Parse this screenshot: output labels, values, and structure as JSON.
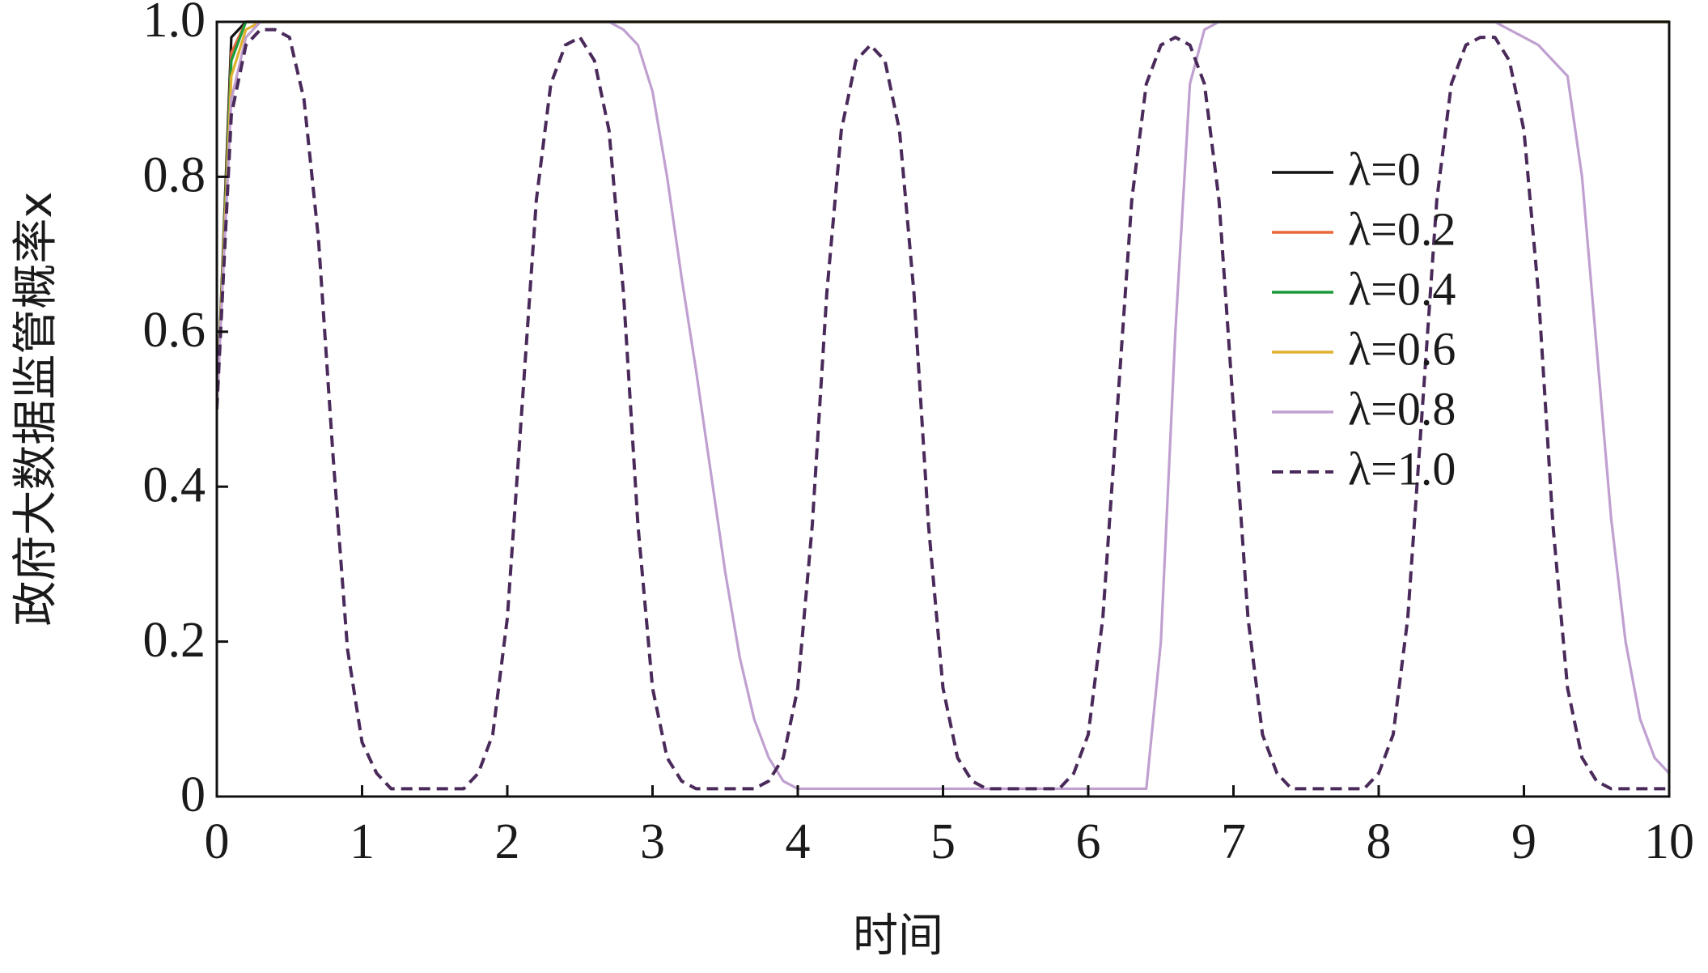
{
  "chart_data": {
    "type": "line",
    "xlabel": "时间",
    "ylabel": "政府大数据监管概率x",
    "xlim": [
      0,
      10
    ],
    "ylim": [
      0,
      1
    ],
    "xticks": [
      0,
      1,
      2,
      3,
      4,
      5,
      6,
      7,
      8,
      9,
      10
    ],
    "yticks": [
      0,
      0.2,
      0.4,
      0.6,
      0.8,
      {
        "value": 1,
        "label": "1.0"
      }
    ],
    "legend": "upper right",
    "x": [
      0,
      0.1,
      0.2,
      0.3,
      0.4,
      0.5,
      0.6,
      0.7,
      0.8,
      0.9,
      1,
      1.1,
      1.2,
      1.3,
      1.4,
      1.5,
      1.6,
      1.7,
      1.8,
      1.9,
      2,
      2.1,
      2.2,
      2.3,
      2.4,
      2.5,
      2.6,
      2.7,
      2.8,
      2.9,
      3,
      3.1,
      3.2,
      3.3,
      3.4,
      3.5,
      3.6,
      3.7,
      3.8,
      3.9,
      4,
      4.1,
      4.2,
      4.3,
      4.4,
      4.5,
      4.6,
      4.7,
      4.8,
      4.9,
      5,
      5.1,
      5.2,
      5.3,
      5.4,
      5.5,
      5.6,
      5.7,
      5.8,
      5.9,
      6,
      6.1,
      6.2,
      6.3,
      6.4,
      6.5,
      6.6,
      6.7,
      6.8,
      6.9,
      7,
      7.1,
      7.2,
      7.3,
      7.4,
      7.5,
      7.6,
      7.7,
      7.8,
      7.9,
      8,
      8.1,
      8.2,
      8.3,
      8.4,
      8.5,
      8.6,
      8.7,
      8.8,
      8.9,
      9,
      9.1,
      9.2,
      9.3,
      9.4,
      9.5,
      9.6,
      9.7,
      9.8,
      9.9,
      10
    ],
    "series": [
      {
        "name": "λ=0",
        "color": "#111111",
        "dash": false,
        "values": [
          0.5,
          0.98,
          1,
          1,
          1,
          1,
          1,
          1,
          1,
          1,
          1,
          1,
          1,
          1,
          1,
          1,
          1,
          1,
          1,
          1,
          1,
          1,
          1,
          1,
          1,
          1,
          1,
          1,
          1,
          1,
          1,
          1,
          1,
          1,
          1,
          1,
          1,
          1,
          1,
          1,
          1,
          1,
          1,
          1,
          1,
          1,
          1,
          1,
          1,
          1,
          1,
          1,
          1,
          1,
          1,
          1,
          1,
          1,
          1,
          1,
          1,
          1,
          1,
          1,
          1,
          1,
          1,
          1,
          1,
          1,
          1,
          1,
          1,
          1,
          1,
          1,
          1,
          1,
          1,
          1,
          1,
          1,
          1,
          1,
          1,
          1,
          1,
          1,
          1,
          1,
          1,
          1,
          1,
          1,
          1,
          1,
          1,
          1,
          1,
          1,
          1
        ]
      },
      {
        "name": "λ=0.2",
        "color": "#e8683a",
        "dash": false,
        "values": [
          0.5,
          0.96,
          1,
          1,
          1,
          1,
          1,
          1,
          1,
          1,
          1,
          1,
          1,
          1,
          1,
          1,
          1,
          1,
          1,
          1,
          1,
          1,
          1,
          1,
          1,
          1,
          1,
          1,
          1,
          1,
          1,
          1,
          1,
          1,
          1,
          1,
          1,
          1,
          1,
          1,
          1,
          1,
          1,
          1,
          1,
          1,
          1,
          1,
          1,
          1,
          1,
          1,
          1,
          1,
          1,
          1,
          1,
          1,
          1,
          1,
          1,
          1,
          1,
          1,
          1,
          1,
          1,
          1,
          1,
          1,
          1,
          1,
          1,
          1,
          1,
          1,
          1,
          1,
          1,
          1,
          1,
          1,
          1,
          1,
          1,
          1,
          1,
          1,
          1,
          1,
          1,
          1,
          1,
          1,
          1,
          1,
          1,
          1,
          1,
          1,
          1
        ]
      },
      {
        "name": "λ=0.4",
        "color": "#1a9a3a",
        "dash": false,
        "values": [
          0.5,
          0.95,
          1,
          1,
          1,
          1,
          1,
          1,
          1,
          1,
          1,
          1,
          1,
          1,
          1,
          1,
          1,
          1,
          1,
          1,
          1,
          1,
          1,
          1,
          1,
          1,
          1,
          1,
          1,
          1,
          1,
          1,
          1,
          1,
          1,
          1,
          1,
          1,
          1,
          1,
          1,
          1,
          1,
          1,
          1,
          1,
          1,
          1,
          1,
          1,
          1,
          1,
          1,
          1,
          1,
          1,
          1,
          1,
          1,
          1,
          1,
          1,
          1,
          1,
          1,
          1,
          1,
          1,
          1,
          1,
          1,
          1,
          1,
          1,
          1,
          1,
          1,
          1,
          1,
          1,
          1,
          1,
          1,
          1,
          1,
          1,
          1,
          1,
          1,
          1,
          1,
          1,
          1,
          1,
          1,
          1,
          1,
          1,
          1,
          1,
          1
        ]
      },
      {
        "name": "λ=0.6",
        "color": "#e0b030",
        "dash": false,
        "values": [
          0.5,
          0.93,
          0.99,
          1,
          1,
          1,
          1,
          1,
          1,
          1,
          1,
          1,
          1,
          1,
          1,
          1,
          1,
          1,
          1,
          1,
          1,
          1,
          1,
          1,
          1,
          1,
          1,
          1,
          1,
          1,
          1,
          1,
          1,
          1,
          1,
          1,
          1,
          1,
          1,
          1,
          1,
          1,
          1,
          1,
          1,
          1,
          1,
          1,
          1,
          1,
          1,
          1,
          1,
          1,
          1,
          1,
          1,
          1,
          1,
          1,
          1,
          1,
          1,
          1,
          1,
          1,
          1,
          1,
          1,
          1,
          1,
          1,
          1,
          1,
          1,
          1,
          1,
          1,
          1,
          1,
          1,
          1,
          1,
          1,
          1,
          1,
          1,
          1,
          1,
          1,
          1,
          1,
          1,
          1,
          1,
          1,
          1,
          1,
          1,
          1,
          1
        ]
      },
      {
        "name": "λ=0.8",
        "color": "#c0a0d0",
        "dash": false,
        "values": [
          0.5,
          0.9,
          0.98,
          1,
          1,
          1,
          1,
          1,
          1,
          1,
          1,
          1,
          1,
          1,
          1,
          1,
          1,
          1,
          1,
          1,
          1,
          1,
          1,
          1,
          1,
          1,
          1,
          1,
          0.99,
          0.97,
          0.91,
          0.8,
          0.67,
          0.55,
          0.42,
          0.29,
          0.18,
          0.1,
          0.05,
          0.02,
          0.01,
          0.01,
          0.01,
          0.01,
          0.01,
          0.01,
          0.01,
          0.01,
          0.01,
          0.01,
          0.01,
          0.01,
          0.01,
          0.01,
          0.01,
          0.01,
          0.01,
          0.01,
          0.01,
          0.01,
          0.01,
          0.01,
          0.01,
          0.01,
          0.01,
          0.2,
          0.6,
          0.92,
          0.99,
          1,
          1,
          1,
          1,
          1,
          1,
          1,
          1,
          1,
          1,
          1,
          1,
          1,
          1,
          1,
          1,
          1,
          1,
          1,
          1,
          0.99,
          0.98,
          0.97,
          0.95,
          0.93,
          0.8,
          0.58,
          0.36,
          0.2,
          0.1,
          0.05,
          0.03
        ]
      },
      {
        "name": "λ=1.0",
        "color": "#4a2a5a",
        "dash": true,
        "values": [
          0.5,
          0.88,
          0.97,
          0.99,
          0.99,
          0.98,
          0.9,
          0.72,
          0.44,
          0.19,
          0.07,
          0.03,
          0.01,
          0.01,
          0.01,
          0.01,
          0.01,
          0.01,
          0.03,
          0.08,
          0.23,
          0.5,
          0.77,
          0.92,
          0.97,
          0.98,
          0.95,
          0.86,
          0.65,
          0.35,
          0.14,
          0.05,
          0.02,
          0.01,
          0.01,
          0.01,
          0.01,
          0.01,
          0.02,
          0.05,
          0.14,
          0.35,
          0.65,
          0.86,
          0.95,
          0.97,
          0.95,
          0.86,
          0.65,
          0.35,
          0.14,
          0.05,
          0.02,
          0.01,
          0.01,
          0.01,
          0.01,
          0.01,
          0.01,
          0.03,
          0.08,
          0.23,
          0.5,
          0.77,
          0.92,
          0.97,
          0.98,
          0.97,
          0.92,
          0.77,
          0.5,
          0.23,
          0.08,
          0.03,
          0.01,
          0.01,
          0.01,
          0.01,
          0.01,
          0.01,
          0.03,
          0.08,
          0.23,
          0.5,
          0.77,
          0.92,
          0.97,
          0.98,
          0.98,
          0.95,
          0.86,
          0.65,
          0.35,
          0.14,
          0.05,
          0.02,
          0.01,
          0.01,
          0.01,
          0.01,
          0.01
        ]
      }
    ]
  }
}
